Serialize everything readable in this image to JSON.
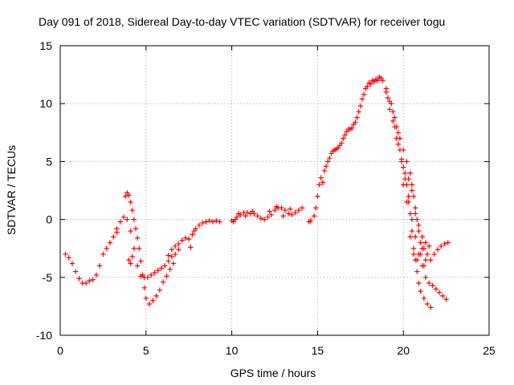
{
  "chart_data": {
    "type": "scatter",
    "title": "Day 091 of 2018, Sidereal Day-to-day VTEC variation (SDTVAR) for receiver togu",
    "xlabel": "GPS time / hours",
    "ylabel": "SDTVAR / TECUs",
    "xlim": [
      0,
      25
    ],
    "ylim": [
      -10,
      15
    ],
    "xticks": [
      0,
      5,
      10,
      15,
      20,
      25
    ],
    "yticks": [
      -10,
      -5,
      0,
      5,
      10,
      15
    ],
    "xtick_labels": [
      "0",
      "5",
      "10",
      "15",
      "20",
      "25"
    ],
    "ytick_labels": [
      "-10",
      "-5",
      "0",
      "5",
      "10",
      "15"
    ],
    "grid": true,
    "marker": "+",
    "color": "#ff0000",
    "series": [
      {
        "name": "SDTVAR",
        "points": [
          [
            0.3,
            -3.0
          ],
          [
            0.5,
            -3.3
          ],
          [
            0.7,
            -3.8
          ],
          [
            0.9,
            -4.5
          ],
          [
            1.1,
            -5.1
          ],
          [
            1.3,
            -5.5
          ],
          [
            1.5,
            -5.5
          ],
          [
            1.7,
            -5.3
          ],
          [
            1.9,
            -5.2
          ],
          [
            2.1,
            -4.8
          ],
          [
            2.3,
            -4.0
          ],
          [
            2.5,
            -3.0
          ],
          [
            2.7,
            -2.5
          ],
          [
            2.9,
            -2.0
          ],
          [
            3.1,
            -1.5
          ],
          [
            3.3,
            -0.8
          ],
          [
            3.5,
            -0.2
          ],
          [
            3.7,
            0.2
          ],
          [
            3.9,
            0.0
          ],
          [
            4.1,
            -1.0
          ],
          [
            4.3,
            -2.5
          ],
          [
            4.5,
            -4.0
          ],
          [
            4.7,
            -4.9
          ],
          [
            4.9,
            -5.0
          ],
          [
            5.1,
            -5.0
          ],
          [
            5.3,
            -4.8
          ],
          [
            5.5,
            -4.6
          ],
          [
            5.7,
            -4.4
          ],
          [
            5.9,
            -4.2
          ],
          [
            6.1,
            -4.0
          ],
          [
            6.3,
            -3.6
          ],
          [
            6.5,
            -3.2
          ],
          [
            6.7,
            -3.0
          ],
          [
            6.9,
            -2.6
          ],
          [
            3.8,
            2.0
          ],
          [
            3.9,
            2.3
          ],
          [
            4.0,
            2.1
          ],
          [
            4.1,
            1.5
          ],
          [
            4.2,
            0.8
          ],
          [
            4.3,
            0.0
          ],
          [
            4.4,
            -0.8
          ],
          [
            4.5,
            -1.6
          ],
          [
            4.6,
            -2.5
          ],
          [
            4.7,
            -3.6
          ],
          [
            4.8,
            -4.8
          ],
          [
            4.9,
            -5.9
          ],
          [
            5.0,
            -6.8
          ],
          [
            5.2,
            -7.3
          ],
          [
            5.4,
            -7.0
          ],
          [
            5.6,
            -6.6
          ],
          [
            5.8,
            -6.1
          ],
          [
            6.0,
            -5.4
          ],
          [
            6.2,
            -4.9
          ],
          [
            6.4,
            -4.3
          ],
          [
            6.6,
            -3.8
          ],
          [
            4.0,
            -3.5
          ],
          [
            4.2,
            -3.2
          ],
          [
            3.3,
            -1.1
          ],
          [
            4.1,
            -3.8
          ],
          [
            6.3,
            -3.1
          ],
          [
            6.5,
            -2.6
          ],
          [
            6.7,
            -2.3
          ],
          [
            6.9,
            -2.1
          ],
          [
            7.1,
            -1.8
          ],
          [
            7.3,
            -1.6
          ],
          [
            7.5,
            -1.7
          ],
          [
            7.6,
            -2.4
          ],
          [
            7.7,
            -1.3
          ],
          [
            7.8,
            -1.0
          ],
          [
            7.9,
            -0.8
          ],
          [
            8.1,
            -0.5
          ],
          [
            8.3,
            -0.3
          ],
          [
            8.5,
            -0.2
          ],
          [
            8.7,
            -0.1
          ],
          [
            8.9,
            -0.2
          ],
          [
            9.1,
            -0.1
          ],
          [
            9.3,
            -0.2
          ],
          [
            10.1,
            -0.2
          ],
          [
            10.2,
            0.0
          ],
          [
            10.3,
            0.2
          ],
          [
            10.5,
            0.4
          ],
          [
            10.7,
            0.6
          ],
          [
            10.9,
            0.6
          ],
          [
            11.1,
            0.5
          ],
          [
            11.3,
            0.5
          ],
          [
            11.5,
            0.3
          ],
          [
            11.7,
            0.1
          ],
          [
            11.9,
            0.0
          ],
          [
            12.1,
            0.2
          ],
          [
            12.3,
            0.4
          ],
          [
            12.5,
            0.8
          ],
          [
            12.7,
            1.0
          ],
          [
            12.9,
            1.0
          ],
          [
            13.1,
            0.8
          ],
          [
            13.3,
            0.5
          ],
          [
            13.5,
            0.4
          ],
          [
            13.7,
            0.6
          ],
          [
            13.9,
            0.8
          ],
          [
            14.1,
            1.0
          ],
          [
            10.0,
            -0.1
          ],
          [
            10.4,
            0.5
          ],
          [
            10.8,
            0.3
          ],
          [
            11.2,
            0.7
          ],
          [
            12.2,
            0.7
          ],
          [
            12.6,
            1.1
          ],
          [
            13.0,
            0.3
          ],
          [
            13.4,
            0.9
          ],
          [
            14.5,
            -0.2
          ],
          [
            14.6,
            -0.1
          ],
          [
            14.8,
            0.3
          ],
          [
            14.9,
            1.0
          ],
          [
            15.0,
            2.0
          ],
          [
            15.1,
            3.0
          ],
          [
            15.2,
            3.6
          ],
          [
            15.4,
            4.2
          ],
          [
            15.6,
            5.0
          ],
          [
            15.8,
            5.7
          ],
          [
            16.0,
            6.0
          ],
          [
            16.2,
            6.2
          ],
          [
            16.4,
            6.6
          ],
          [
            16.6,
            7.3
          ],
          [
            16.8,
            7.8
          ],
          [
            17.0,
            7.9
          ],
          [
            17.2,
            8.4
          ],
          [
            17.4,
            9.3
          ],
          [
            17.6,
            10.4
          ],
          [
            17.8,
            11.3
          ],
          [
            18.0,
            11.8
          ],
          [
            18.2,
            12.0
          ],
          [
            18.4,
            12.1
          ],
          [
            18.6,
            12.3
          ],
          [
            18.8,
            12.0
          ],
          [
            19.0,
            11.3
          ],
          [
            19.2,
            10.2
          ],
          [
            19.4,
            9.3
          ],
          [
            19.6,
            8.0
          ],
          [
            19.8,
            7.0
          ],
          [
            20.0,
            6.0
          ],
          [
            20.2,
            5.0
          ],
          [
            20.4,
            4.0
          ],
          [
            20.5,
            3.0
          ],
          [
            20.6,
            2.0
          ],
          [
            20.7,
            1.0
          ],
          [
            20.8,
            0.0
          ],
          [
            20.9,
            -1.0
          ],
          [
            21.0,
            -2.0
          ],
          [
            21.2,
            -2.5
          ],
          [
            21.4,
            -3.0
          ],
          [
            21.6,
            -3.5
          ],
          [
            21.8,
            -3.0
          ],
          [
            22.0,
            -2.6
          ],
          [
            22.2,
            -2.3
          ],
          [
            22.4,
            -2.1
          ],
          [
            22.6,
            -2.0
          ],
          [
            19.0,
            11.0
          ],
          [
            19.2,
            9.5
          ],
          [
            19.4,
            8.5
          ],
          [
            19.6,
            7.0
          ],
          [
            19.8,
            6.0
          ],
          [
            20.0,
            4.5
          ],
          [
            20.2,
            3.0
          ],
          [
            20.3,
            2.0
          ],
          [
            20.4,
            0.5
          ],
          [
            20.5,
            -1.0
          ],
          [
            20.6,
            -2.5
          ],
          [
            20.7,
            -3.5
          ],
          [
            20.8,
            -4.5
          ],
          [
            20.9,
            -5.5
          ],
          [
            21.0,
            -6.2
          ],
          [
            21.2,
            -6.8
          ],
          [
            21.4,
            -7.3
          ],
          [
            21.6,
            -7.6
          ],
          [
            19.5,
            8.0
          ],
          [
            19.7,
            6.5
          ],
          [
            19.9,
            5.2
          ],
          [
            20.1,
            3.5
          ],
          [
            20.3,
            1.5
          ],
          [
            20.5,
            0.0
          ],
          [
            20.7,
            -1.5
          ],
          [
            20.9,
            -3.0
          ],
          [
            21.1,
            -4.0
          ],
          [
            21.3,
            -5.0
          ],
          [
            21.5,
            -5.5
          ],
          [
            21.7,
            -5.7
          ],
          [
            21.9,
            -6.0
          ],
          [
            22.1,
            -6.3
          ],
          [
            22.3,
            -6.6
          ],
          [
            22.5,
            -6.9
          ],
          [
            19.9,
            5.0
          ],
          [
            20.1,
            4.0
          ],
          [
            20.3,
            3.5
          ],
          [
            20.5,
            2.5
          ],
          [
            20.7,
            0.5
          ],
          [
            20.9,
            -0.5
          ],
          [
            21.1,
            -1.5
          ],
          [
            21.3,
            -2.0
          ],
          [
            21.5,
            -2.3
          ],
          [
            17.9,
            11.5
          ],
          [
            18.1,
            11.7
          ],
          [
            18.3,
            11.9
          ],
          [
            18.5,
            12.0
          ],
          [
            18.7,
            12.2
          ],
          [
            19.1,
            10.5
          ],
          [
            19.3,
            10.0
          ],
          [
            19.5,
            8.8
          ],
          [
            19.7,
            7.5
          ],
          [
            20.0,
            3.0
          ],
          [
            20.2,
            1.5
          ],
          [
            20.4,
            -1.5
          ],
          [
            20.6,
            -3.0
          ],
          [
            20.8,
            -3.5
          ],
          [
            21.0,
            -3.0
          ],
          [
            21.2,
            -4.0
          ],
          [
            21.1,
            -2.5
          ],
          [
            21.3,
            -3.5
          ],
          [
            15.3,
            3.2
          ],
          [
            15.5,
            4.6
          ],
          [
            15.7,
            5.3
          ],
          [
            15.9,
            5.9
          ],
          [
            16.1,
            6.1
          ],
          [
            16.3,
            6.4
          ],
          [
            16.5,
            7.0
          ],
          [
            16.7,
            7.6
          ],
          [
            16.9,
            7.8
          ],
          [
            17.1,
            8.2
          ],
          [
            17.3,
            8.8
          ],
          [
            17.5,
            9.8
          ],
          [
            17.7,
            10.8
          ]
        ]
      }
    ]
  }
}
